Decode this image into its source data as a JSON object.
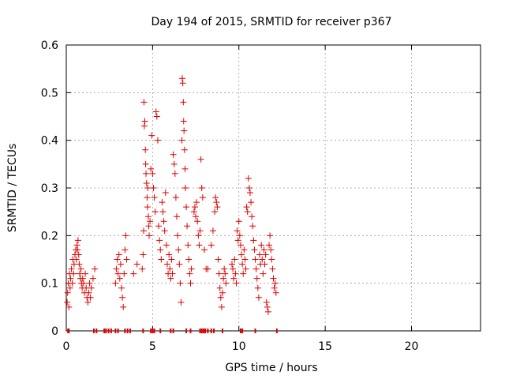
{
  "chart_data": {
    "type": "scatter",
    "title": "Day 194 of 2015, SRMTID for receiver p367",
    "xlabel": "GPS time / hours",
    "ylabel": "SRMTID / TECUs",
    "xlim": [
      0,
      24
    ],
    "ylim": [
      0,
      0.6
    ],
    "xticks": [
      0,
      5,
      10,
      15,
      20
    ],
    "yticks": [
      0,
      0.1,
      0.2,
      0.3,
      0.4,
      0.5,
      0.6
    ],
    "xtick_labels": [
      "0",
      "5",
      "10",
      "15",
      "20"
    ],
    "ytick_labels": [
      "0",
      "0.1",
      "0.2",
      "0.3",
      "0.4",
      "0.5",
      "0.6"
    ],
    "grid": true,
    "legend": "none",
    "marker": "+",
    "marker_color": "#dd0000",
    "series": [
      {
        "points": [
          [
            0.05,
            0.06
          ],
          [
            0.08,
            0.08
          ],
          [
            0.12,
            0.1
          ],
          [
            0.15,
            0.05
          ],
          [
            0.18,
            0.12
          ],
          [
            0.22,
            0.09
          ],
          [
            0.25,
            0.11
          ],
          [
            0.3,
            0.13
          ],
          [
            0.35,
            0.1
          ],
          [
            0.38,
            0.15
          ],
          [
            0.42,
            0.12
          ],
          [
            0.45,
            0.14
          ],
          [
            0.5,
            0.16
          ],
          [
            0.55,
            0.17
          ],
          [
            0.58,
            0.15
          ],
          [
            0.62,
            0.18
          ],
          [
            0.65,
            0.17
          ],
          [
            0.68,
            0.19
          ],
          [
            0.72,
            0.16
          ],
          [
            0.75,
            0.14
          ],
          [
            0.78,
            0.12
          ],
          [
            0.82,
            0.11
          ],
          [
            0.85,
            0.13
          ],
          [
            0.88,
            0.1
          ],
          [
            0.92,
            0.09
          ],
          [
            0.95,
            0.11
          ],
          [
            1.0,
            0.1
          ],
          [
            1.05,
            0.08
          ],
          [
            1.1,
            0.12
          ],
          [
            1.15,
            0.09
          ],
          [
            1.2,
            0.07
          ],
          [
            1.25,
            0.06
          ],
          [
            1.3,
            0.08
          ],
          [
            1.35,
            0.1
          ],
          [
            1.4,
            0.07
          ],
          [
            1.45,
            0.09
          ],
          [
            1.55,
            0.11
          ],
          [
            1.65,
            0.13
          ],
          [
            2.85,
            0.1
          ],
          [
            2.9,
            0.13
          ],
          [
            2.95,
            0.15
          ],
          [
            3.0,
            0.12
          ],
          [
            3.05,
            0.16
          ],
          [
            3.1,
            0.11
          ],
          [
            3.15,
            0.14
          ],
          [
            3.2,
            0.09
          ],
          [
            3.25,
            0.07
          ],
          [
            3.3,
            0.05
          ],
          [
            3.35,
            0.12
          ],
          [
            3.4,
            0.17
          ],
          [
            3.45,
            0.2
          ],
          [
            3.5,
            0.15
          ],
          [
            3.9,
            0.12
          ],
          [
            4.1,
            0.14
          ],
          [
            4.4,
            0.13
          ],
          [
            4.45,
            0.16
          ],
          [
            4.48,
            0.21
          ],
          [
            4.5,
            0.48
          ],
          [
            4.52,
            0.43
          ],
          [
            4.55,
            0.44
          ],
          [
            4.58,
            0.38
          ],
          [
            4.6,
            0.35
          ],
          [
            4.62,
            0.33
          ],
          [
            4.65,
            0.31
          ],
          [
            4.68,
            0.28
          ],
          [
            4.7,
            0.26
          ],
          [
            4.72,
            0.3
          ],
          [
            4.75,
            0.24
          ],
          [
            4.78,
            0.22
          ],
          [
            4.8,
            0.2
          ],
          [
            4.85,
            0.23
          ],
          [
            4.9,
            0.34
          ],
          [
            4.95,
            0.41
          ],
          [
            5.0,
            0.33
          ],
          [
            5.05,
            0.3
          ],
          [
            5.1,
            0.28
          ],
          [
            5.15,
            0.25
          ],
          [
            5.2,
            0.46
          ],
          [
            5.25,
            0.45
          ],
          [
            5.3,
            0.4
          ],
          [
            5.35,
            0.22
          ],
          [
            5.4,
            0.19
          ],
          [
            5.45,
            0.17
          ],
          [
            5.5,
            0.15
          ],
          [
            5.55,
            0.27
          ],
          [
            5.6,
            0.25
          ],
          [
            5.65,
            0.23
          ],
          [
            5.7,
            0.21
          ],
          [
            5.75,
            0.29
          ],
          [
            5.8,
            0.18
          ],
          [
            5.85,
            0.14
          ],
          [
            5.9,
            0.12
          ],
          [
            5.95,
            0.16
          ],
          [
            6.0,
            0.13
          ],
          [
            6.05,
            0.11
          ],
          [
            6.1,
            0.15
          ],
          [
            6.15,
            0.12
          ],
          [
            6.2,
            0.37
          ],
          [
            6.25,
            0.35
          ],
          [
            6.3,
            0.33
          ],
          [
            6.35,
            0.28
          ],
          [
            6.4,
            0.24
          ],
          [
            6.45,
            0.2
          ],
          [
            6.5,
            0.17
          ],
          [
            6.55,
            0.14
          ],
          [
            6.6,
            0.1
          ],
          [
            6.65,
            0.06
          ],
          [
            6.7,
            0.4
          ],
          [
            6.72,
            0.53
          ],
          [
            6.75,
            0.52
          ],
          [
            6.78,
            0.48
          ],
          [
            6.8,
            0.44
          ],
          [
            6.82,
            0.42
          ],
          [
            6.85,
            0.38
          ],
          [
            6.88,
            0.34
          ],
          [
            6.9,
            0.3
          ],
          [
            6.95,
            0.26
          ],
          [
            7.0,
            0.22
          ],
          [
            7.05,
            0.18
          ],
          [
            7.1,
            0.15
          ],
          [
            7.15,
            0.12
          ],
          [
            7.2,
            0.1
          ],
          [
            7.25,
            0.13
          ],
          [
            7.4,
            0.25
          ],
          [
            7.45,
            0.26
          ],
          [
            7.5,
            0.24
          ],
          [
            7.55,
            0.27
          ],
          [
            7.6,
            0.23
          ],
          [
            7.65,
            0.2
          ],
          [
            7.7,
            0.18
          ],
          [
            7.75,
            0.21
          ],
          [
            7.8,
            0.36
          ],
          [
            7.85,
            0.3
          ],
          [
            7.9,
            0.28
          ],
          [
            8.0,
            0.17
          ],
          [
            8.1,
            0.13
          ],
          [
            8.2,
            0.13
          ],
          [
            8.4,
            0.18
          ],
          [
            8.5,
            0.21
          ],
          [
            8.6,
            0.25
          ],
          [
            8.65,
            0.28
          ],
          [
            8.7,
            0.27
          ],
          [
            8.75,
            0.26
          ],
          [
            8.8,
            0.15
          ],
          [
            8.85,
            0.12
          ],
          [
            8.9,
            0.09
          ],
          [
            8.95,
            0.07
          ],
          [
            9.0,
            0.05
          ],
          [
            9.05,
            0.08
          ],
          [
            9.1,
            0.11
          ],
          [
            9.15,
            0.13
          ],
          [
            9.2,
            0.12
          ],
          [
            9.25,
            0.1
          ],
          [
            9.6,
            0.14
          ],
          [
            9.65,
            0.13
          ],
          [
            9.7,
            0.11
          ],
          [
            9.75,
            0.15
          ],
          [
            9.8,
            0.12
          ],
          [
            9.85,
            0.1
          ],
          [
            9.9,
            0.21
          ],
          [
            9.95,
            0.19
          ],
          [
            10.0,
            0.23
          ],
          [
            10.05,
            0.2
          ],
          [
            10.1,
            0.18
          ],
          [
            10.15,
            0.16
          ],
          [
            10.2,
            0.14
          ],
          [
            10.25,
            0.12
          ],
          [
            10.3,
            0.17
          ],
          [
            10.35,
            0.15
          ],
          [
            10.4,
            0.13
          ],
          [
            10.45,
            0.26
          ],
          [
            10.5,
            0.25
          ],
          [
            10.55,
            0.32
          ],
          [
            10.6,
            0.3
          ],
          [
            10.65,
            0.29
          ],
          [
            10.7,
            0.27
          ],
          [
            10.75,
            0.24
          ],
          [
            10.8,
            0.22
          ],
          [
            10.85,
            0.19
          ],
          [
            10.9,
            0.17
          ],
          [
            10.95,
            0.15
          ],
          [
            11.0,
            0.13
          ],
          [
            11.05,
            0.11
          ],
          [
            11.1,
            0.09
          ],
          [
            11.15,
            0.07
          ],
          [
            11.2,
            0.16
          ],
          [
            11.25,
            0.14
          ],
          [
            11.3,
            0.18
          ],
          [
            11.35,
            0.15
          ],
          [
            11.4,
            0.12
          ],
          [
            11.45,
            0.17
          ],
          [
            11.5,
            0.14
          ],
          [
            11.55,
            0.16
          ],
          [
            11.6,
            0.06
          ],
          [
            11.65,
            0.05
          ],
          [
            11.7,
            0.04
          ],
          [
            11.75,
            0.18
          ],
          [
            11.8,
            0.2
          ],
          [
            11.85,
            0.17
          ],
          [
            11.9,
            0.15
          ],
          [
            11.95,
            0.13
          ],
          [
            12.0,
            0.11
          ],
          [
            12.05,
            0.09
          ],
          [
            12.1,
            0.1
          ],
          [
            12.15,
            0.08
          ]
        ]
      }
    ],
    "zero_markers_x": [
      0.1,
      0.15,
      1.6,
      1.75,
      2.2,
      2.3,
      2.45,
      2.6,
      2.85,
      3.0,
      3.4,
      3.55,
      3.7,
      4.45,
      4.9,
      5.0,
      5.1,
      5.45,
      6.05,
      6.2,
      6.95,
      7.2,
      7.75,
      7.85,
      7.95,
      8.05,
      8.2,
      8.4,
      8.55,
      9.05,
      10.1,
      10.2,
      10.95,
      12.2
    ]
  }
}
